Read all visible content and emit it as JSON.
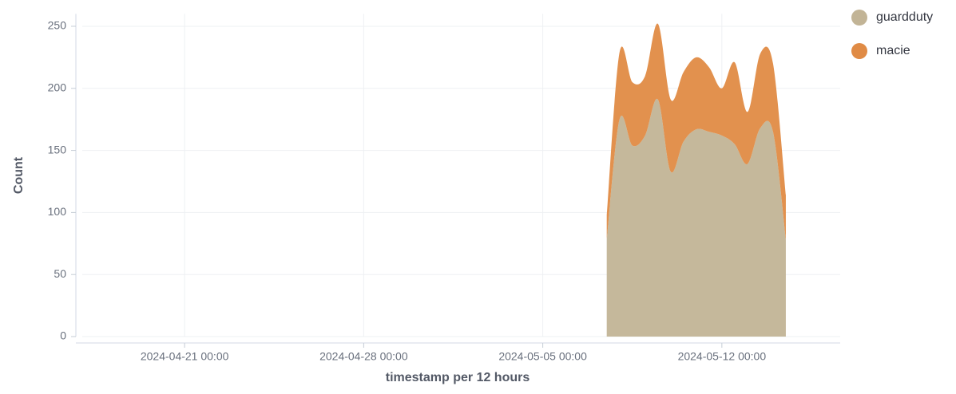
{
  "chart_data": {
    "type": "stacked_area",
    "xlabel": "timestamp per 12 hours",
    "ylabel": "Count",
    "x": [
      "2024-05-07 12:00",
      "2024-05-08 00:00",
      "2024-05-08 12:00",
      "2024-05-09 00:00",
      "2024-05-09 12:00",
      "2024-05-10 00:00",
      "2024-05-10 12:00",
      "2024-05-11 00:00",
      "2024-05-11 12:00",
      "2024-05-12 00:00",
      "2024-05-12 12:00",
      "2024-05-13 00:00",
      "2024-05-13 12:00",
      "2024-05-14 00:00",
      "2024-05-14 12:00"
    ],
    "series": [
      {
        "name": "guardduty",
        "color": "#c2b496",
        "values": [
          78,
          175,
          154,
          162,
          191,
          133,
          157,
          167,
          165,
          162,
          155,
          139,
          168,
          165,
          78
        ]
      },
      {
        "name": "macie",
        "color": "#e08b45",
        "values": [
          20,
          54,
          51,
          48,
          61,
          58,
          56,
          58,
          52,
          38,
          66,
          42,
          60,
          55,
          36
        ]
      }
    ],
    "xlim": [
      "2024-04-16 18:00",
      "2024-05-16 15:00"
    ],
    "xticks": [
      "2024-04-21 00:00",
      "2024-04-28 00:00",
      "2024-05-05 00:00",
      "2024-05-12 00:00"
    ],
    "ylim": [
      0,
      260
    ],
    "yticks": [
      0,
      50,
      100,
      150,
      200,
      250
    ],
    "grid": true,
    "legend": "top-right"
  }
}
